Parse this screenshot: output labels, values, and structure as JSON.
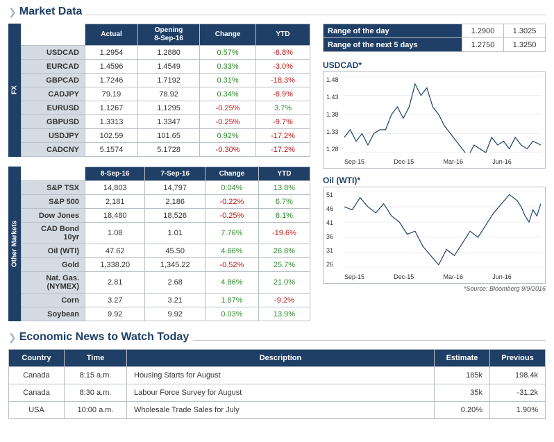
{
  "colors": {
    "header": "#1f3f66",
    "border": "#b8bfc6",
    "rowlabel_bg": "#d5dbe2",
    "pos": "#2e8b2e",
    "neg": "#c01616",
    "chev": "#a8b4c0",
    "line": "#1f3f66"
  },
  "section1_title": "Market Data",
  "section2_title": "Economic News to Watch Today",
  "fx": {
    "vlabel": "FX",
    "headers": [
      "Actual",
      "Opening\n8-Sep-16",
      "Change",
      "YTD"
    ],
    "rows": [
      {
        "label": "USDCAD",
        "actual": "1.2954",
        "open": "1.2880",
        "change": "0.57%",
        "ytd": "-6.8%",
        "ch_pos": true,
        "ytd_pos": false
      },
      {
        "label": "EURCAD",
        "actual": "1.4596",
        "open": "1.4549",
        "change": "0.33%",
        "ytd": "-3.0%",
        "ch_pos": true,
        "ytd_pos": false
      },
      {
        "label": "GBPCAD",
        "actual": "1.7246",
        "open": "1.7192",
        "change": "0.31%",
        "ytd": "-18.3%",
        "ch_pos": true,
        "ytd_pos": false
      },
      {
        "label": "CADJPY",
        "actual": "79.19",
        "open": "78.92",
        "change": "0.34%",
        "ytd": "-8.9%",
        "ch_pos": true,
        "ytd_pos": false
      },
      {
        "label": "EURUSD",
        "actual": "1.1267",
        "open": "1.1295",
        "change": "-0.25%",
        "ytd": "3.7%",
        "ch_pos": false,
        "ytd_pos": true
      },
      {
        "label": "GBPUSD",
        "actual": "1.3313",
        "open": "1.3347",
        "change": "-0.25%",
        "ytd": "-9.7%",
        "ch_pos": false,
        "ytd_pos": false
      },
      {
        "label": "USDJPY",
        "actual": "102.59",
        "open": "101.65",
        "change": "0.92%",
        "ytd": "-17.2%",
        "ch_pos": true,
        "ytd_pos": false
      },
      {
        "label": "CADCNY",
        "actual": "5.1574",
        "open": "5.1728",
        "change": "-0.30%",
        "ytd": "-17.2%",
        "ch_pos": false,
        "ytd_pos": false
      }
    ]
  },
  "om": {
    "vlabel": "Other Markets",
    "headers": [
      "8-Sep-16",
      "7-Sep-16",
      "Change",
      "YTD"
    ],
    "rows": [
      {
        "label": "S&P TSX",
        "v1": "14,803",
        "v2": "14,797",
        "change": "0.04%",
        "ytd": "13.8%",
        "ch_pos": true,
        "ytd_pos": true
      },
      {
        "label": "S&P 500",
        "v1": "2,181",
        "v2": "2,186",
        "change": "-0.22%",
        "ytd": "6.7%",
        "ch_pos": false,
        "ytd_pos": true
      },
      {
        "label": "Dow Jones",
        "v1": "18,480",
        "v2": "18,526",
        "change": "-0.25%",
        "ytd": "6.1%",
        "ch_pos": false,
        "ytd_pos": true
      },
      {
        "label": "CAD Bond 10yr",
        "v1": "1.08",
        "v2": "1.01",
        "change": "7.76%",
        "ytd": "-19.6%",
        "ch_pos": true,
        "ytd_pos": false
      },
      {
        "label": "Oil (WTI)",
        "v1": "47.62",
        "v2": "45.50",
        "change": "4.66%",
        "ytd": "26.8%",
        "ch_pos": true,
        "ytd_pos": true
      },
      {
        "label": "Gold",
        "v1": "1,338.20",
        "v2": "1,345.22",
        "change": "-0.52%",
        "ytd": "25.7%",
        "ch_pos": false,
        "ytd_pos": true
      },
      {
        "label": "Nat. Gas. (NYMEX)",
        "v1": "2.81",
        "v2": "2.68",
        "change": "4.86%",
        "ytd": "21.0%",
        "ch_pos": true,
        "ytd_pos": true
      },
      {
        "label": "Corn",
        "v1": "3.27",
        "v2": "3.21",
        "change": "1.87%",
        "ytd": "-9.2%",
        "ch_pos": true,
        "ytd_pos": false
      },
      {
        "label": "Soybean",
        "v1": "9.92",
        "v2": "9.92",
        "change": "0.03%",
        "ytd": "13.9%",
        "ch_pos": true,
        "ytd_pos": true
      }
    ]
  },
  "ranges": [
    {
      "label": "Range of the day",
      "v1": "1.2900",
      "v2": "1.3025"
    },
    {
      "label": "Range of the next 5 days",
      "v1": "1.2750",
      "v2": "1.3250"
    }
  ],
  "chart1": {
    "title": "USDCAD*",
    "type": "line",
    "ylim": [
      1.28,
      1.48
    ],
    "yticks": [
      "1.48",
      "1.43",
      "1.38",
      "1.33",
      "1.28"
    ],
    "xticks": [
      "Sep-15",
      "Dec-15",
      "Mar-16",
      "Jun-16",
      ""
    ],
    "line_color": "#1f3f66",
    "line_width": 1.2,
    "background": "#ffffff",
    "grid_color": "#d8dde2",
    "points": [
      [
        0,
        1.32
      ],
      [
        3,
        1.34
      ],
      [
        6,
        1.31
      ],
      [
        9,
        1.33
      ],
      [
        12,
        1.3
      ],
      [
        15,
        1.33
      ],
      [
        18,
        1.34
      ],
      [
        21,
        1.34
      ],
      [
        24,
        1.38
      ],
      [
        27,
        1.4
      ],
      [
        30,
        1.37
      ],
      [
        33,
        1.4
      ],
      [
        36,
        1.46
      ],
      [
        39,
        1.43
      ],
      [
        42,
        1.45
      ],
      [
        45,
        1.4
      ],
      [
        48,
        1.38
      ],
      [
        51,
        1.35
      ],
      [
        54,
        1.33
      ],
      [
        57,
        1.31
      ],
      [
        60,
        1.29
      ],
      [
        63,
        1.27
      ],
      [
        66,
        1.3
      ],
      [
        69,
        1.29
      ],
      [
        72,
        1.28
      ],
      [
        75,
        1.32
      ],
      [
        78,
        1.3
      ],
      [
        81,
        1.31
      ],
      [
        84,
        1.29
      ],
      [
        87,
        1.32
      ],
      [
        90,
        1.3
      ],
      [
        93,
        1.29
      ],
      [
        96,
        1.31
      ],
      [
        100,
        1.3
      ]
    ]
  },
  "chart2": {
    "title": "Oil (WTI)*",
    "type": "line",
    "ylim": [
      26,
      51
    ],
    "yticks": [
      "51",
      "46",
      "41",
      "36",
      "31",
      "26"
    ],
    "xticks": [
      "Sep-15",
      "Dec-15",
      "Mar-16",
      "Jun-16",
      ""
    ],
    "line_color": "#1f3f66",
    "line_width": 1.2,
    "background": "#ffffff",
    "grid_color": "#d8dde2",
    "points": [
      [
        0,
        46
      ],
      [
        4,
        45
      ],
      [
        8,
        49
      ],
      [
        12,
        46
      ],
      [
        16,
        44
      ],
      [
        20,
        47
      ],
      [
        24,
        43
      ],
      [
        28,
        41
      ],
      [
        32,
        37
      ],
      [
        36,
        38
      ],
      [
        40,
        33
      ],
      [
        44,
        30
      ],
      [
        48,
        27
      ],
      [
        52,
        32
      ],
      [
        56,
        30
      ],
      [
        60,
        34
      ],
      [
        64,
        38
      ],
      [
        68,
        36
      ],
      [
        72,
        40
      ],
      [
        76,
        44
      ],
      [
        80,
        47
      ],
      [
        84,
        50
      ],
      [
        88,
        48
      ],
      [
        90,
        46
      ],
      [
        92,
        43
      ],
      [
        94,
        41
      ],
      [
        96,
        45
      ],
      [
        98,
        43
      ],
      [
        100,
        47
      ]
    ]
  },
  "source_note": "*Source: Bloomberg  9/9/2016",
  "econ": {
    "headers": [
      "Country",
      "Time",
      "Description",
      "Estimate",
      "Previous"
    ],
    "rows": [
      {
        "country": "Canada",
        "time": "8:15 a.m.",
        "desc": "Housing Starts for August",
        "est": "185k",
        "prev": "198.4k"
      },
      {
        "country": "Canada",
        "time": "8:30 a.m.",
        "desc": "Labour Force Survey for August",
        "est": "35k",
        "prev": "-31.2k"
      },
      {
        "country": "USA",
        "time": "10:00 a.m.",
        "desc": "Wholesale Trade Sales for July",
        "est": "0.20%",
        "prev": "1.90%"
      }
    ]
  }
}
